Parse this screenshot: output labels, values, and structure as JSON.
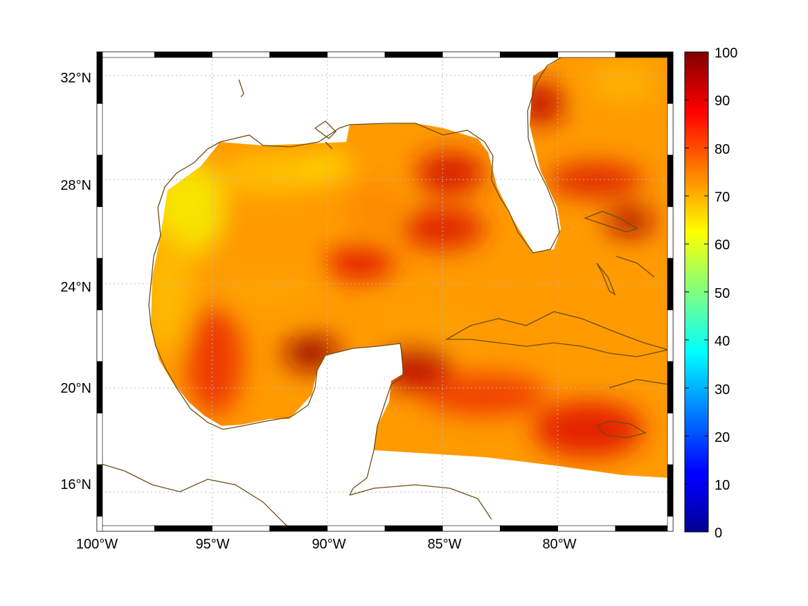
{
  "map": {
    "lat_labels": [
      "32°N",
      "28°N",
      "24°N",
      "20°N",
      "16°N"
    ],
    "lat_values": [
      32,
      28,
      24,
      20,
      16
    ],
    "lon_labels": [
      "100°W",
      "95°W",
      "90°W",
      "85°W",
      "80°W"
    ],
    "lon_values": [
      -100,
      -95,
      -90,
      -85,
      -80
    ],
    "extent": {
      "lon_min": -100,
      "lon_max": -75,
      "lat_min": 14.5,
      "lat_max": 32.9
    },
    "grid": true,
    "coastline_color": "#6b4c10"
  },
  "colorbar": {
    "ticks": [
      "0",
      "10",
      "20",
      "30",
      "40",
      "50",
      "60",
      "70",
      "80",
      "90",
      "100"
    ],
    "min": 0,
    "max": 100,
    "colormap": "jet"
  }
}
